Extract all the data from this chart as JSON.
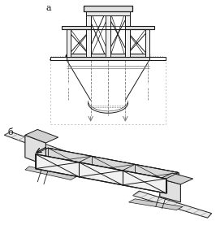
{
  "fig_width": 2.66,
  "fig_height": 2.93,
  "dpi": 100,
  "bg_color": "#ffffff",
  "line_color": "#1a1a1a",
  "gray_color": "#777777",
  "label_a": "а",
  "label_b": "б",
  "label_fontsize": 8
}
